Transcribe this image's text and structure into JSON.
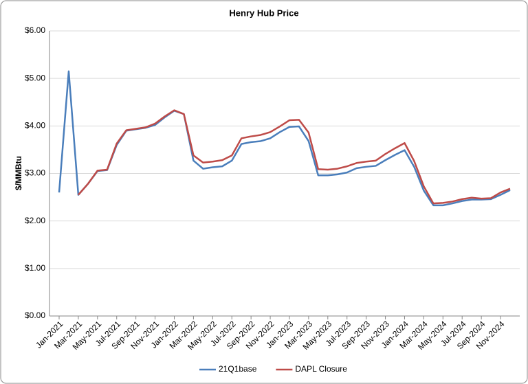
{
  "chart_data": {
    "type": "line",
    "title": "Henry Hub Price",
    "y_label": "$/MMBtu",
    "categories": [
      "Jan-2021",
      null,
      "Mar-2021",
      null,
      "May-2021",
      null,
      "Jul-2021",
      null,
      "Sep-2021",
      null,
      "Nov-2021",
      null,
      "Jan-2022",
      null,
      "Mar-2022",
      null,
      "May-2022",
      null,
      "Jul-2022",
      null,
      "Sep-2022",
      null,
      "Nov-2022",
      null,
      "Jan-2023",
      null,
      "Mar-2023",
      null,
      "May-2023",
      null,
      "Jul-2023",
      null,
      "Sep-2023",
      null,
      "Nov-2023",
      null,
      "Jan-2024",
      null,
      "Mar-2024",
      null,
      "May-2024",
      null,
      "Jul-2024",
      null,
      "Sep-2024",
      null,
      "Nov-2024",
      null
    ],
    "series": [
      {
        "name": "21Q1base",
        "color": "#4a7ebb",
        "values": [
          2.6,
          5.15,
          2.55,
          2.78,
          3.05,
          3.07,
          3.6,
          3.9,
          3.93,
          3.96,
          4.02,
          4.18,
          4.32,
          4.25,
          3.27,
          3.1,
          3.13,
          3.15,
          3.27,
          3.62,
          3.66,
          3.68,
          3.74,
          3.87,
          3.98,
          3.99,
          3.68,
          2.96,
          2.96,
          2.98,
          3.02,
          3.11,
          3.14,
          3.16,
          3.28,
          3.39,
          3.49,
          3.14,
          2.64,
          2.33,
          2.33,
          2.37,
          2.42,
          2.45,
          2.45,
          2.46,
          2.55,
          2.65
        ]
      },
      {
        "name": "DAPL Closure",
        "color": "#be4b48",
        "values": [
          null,
          null,
          2.55,
          2.78,
          3.06,
          3.08,
          3.63,
          3.91,
          3.94,
          3.97,
          4.05,
          4.2,
          4.33,
          4.25,
          3.38,
          3.23,
          3.25,
          3.28,
          3.38,
          3.74,
          3.78,
          3.81,
          3.87,
          3.99,
          4.12,
          4.13,
          3.86,
          3.09,
          3.08,
          3.1,
          3.15,
          3.22,
          3.25,
          3.27,
          3.41,
          3.53,
          3.64,
          3.26,
          2.73,
          2.37,
          2.38,
          2.41,
          2.46,
          2.49,
          2.47,
          2.48,
          2.6,
          2.68
        ]
      }
    ],
    "ylim": [
      0,
      6
    ],
    "yticks": [
      {
        "value": 0,
        "label": "$0.00"
      },
      {
        "value": 1,
        "label": "$1.00"
      },
      {
        "value": 2,
        "label": "$2.00"
      },
      {
        "value": 3,
        "label": "$3.00"
      },
      {
        "value": 4,
        "label": "$4.00"
      },
      {
        "value": 5,
        "label": "$5.00"
      },
      {
        "value": 6,
        "label": "$6.00"
      }
    ],
    "grid": true,
    "legend": "bottom"
  }
}
